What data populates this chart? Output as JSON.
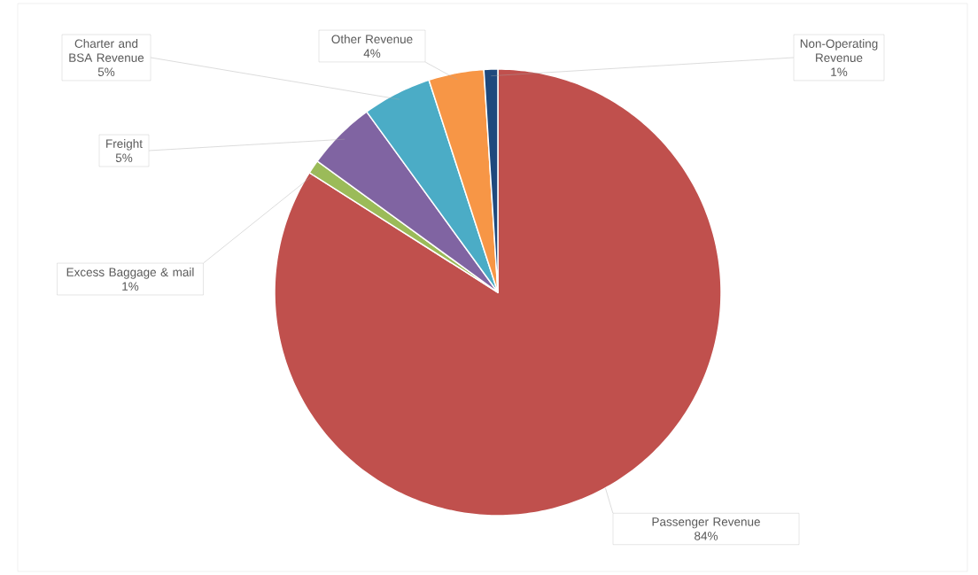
{
  "chart_data": {
    "type": "pie",
    "categories": [
      "Passenger Revenue",
      "Excess Baggage & mail",
      "Freight",
      "Charter and BSA Revenue",
      "Other Revenue",
      "Non-Operating Revenue"
    ],
    "values": [
      84,
      1,
      5,
      5,
      4,
      1
    ],
    "value_labels": [
      "84%",
      "1%",
      "5%",
      "5%",
      "4%",
      "1%"
    ],
    "colors": [
      "#c0504d",
      "#9bbb59",
      "#8064a2",
      "#4bacc6",
      "#f79646",
      "#1f497d"
    ],
    "data_labels": true,
    "legend": false
  }
}
